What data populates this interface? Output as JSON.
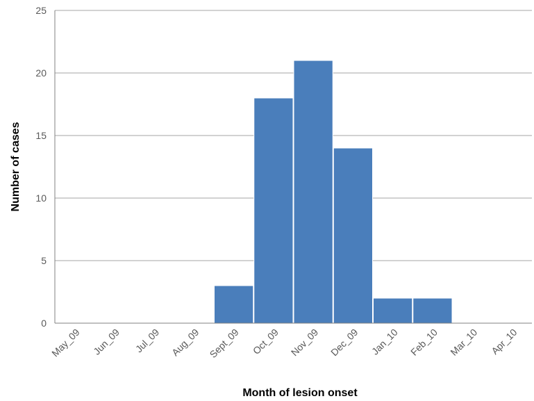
{
  "chart_data": {
    "type": "bar",
    "xlabel": "Month of lesion onset",
    "ylabel": "Number of cases",
    "ylim": [
      0,
      25
    ],
    "yticks": [
      0,
      5,
      10,
      15,
      20,
      25
    ],
    "grid": true,
    "categories": [
      "May_09",
      "Jun_09",
      "Jul_09",
      "Aug_09",
      "Sept_09",
      "Oct_09",
      "Nov_09",
      "Dec_09",
      "Jan_10",
      "Feb_10",
      "Mar_10",
      "Apr_10"
    ],
    "values": [
      0,
      0,
      0,
      0,
      3,
      18,
      21,
      14,
      2,
      2,
      0,
      0
    ],
    "bar_color": "#4a7ebb",
    "grid_color": "#a6a6a6"
  }
}
